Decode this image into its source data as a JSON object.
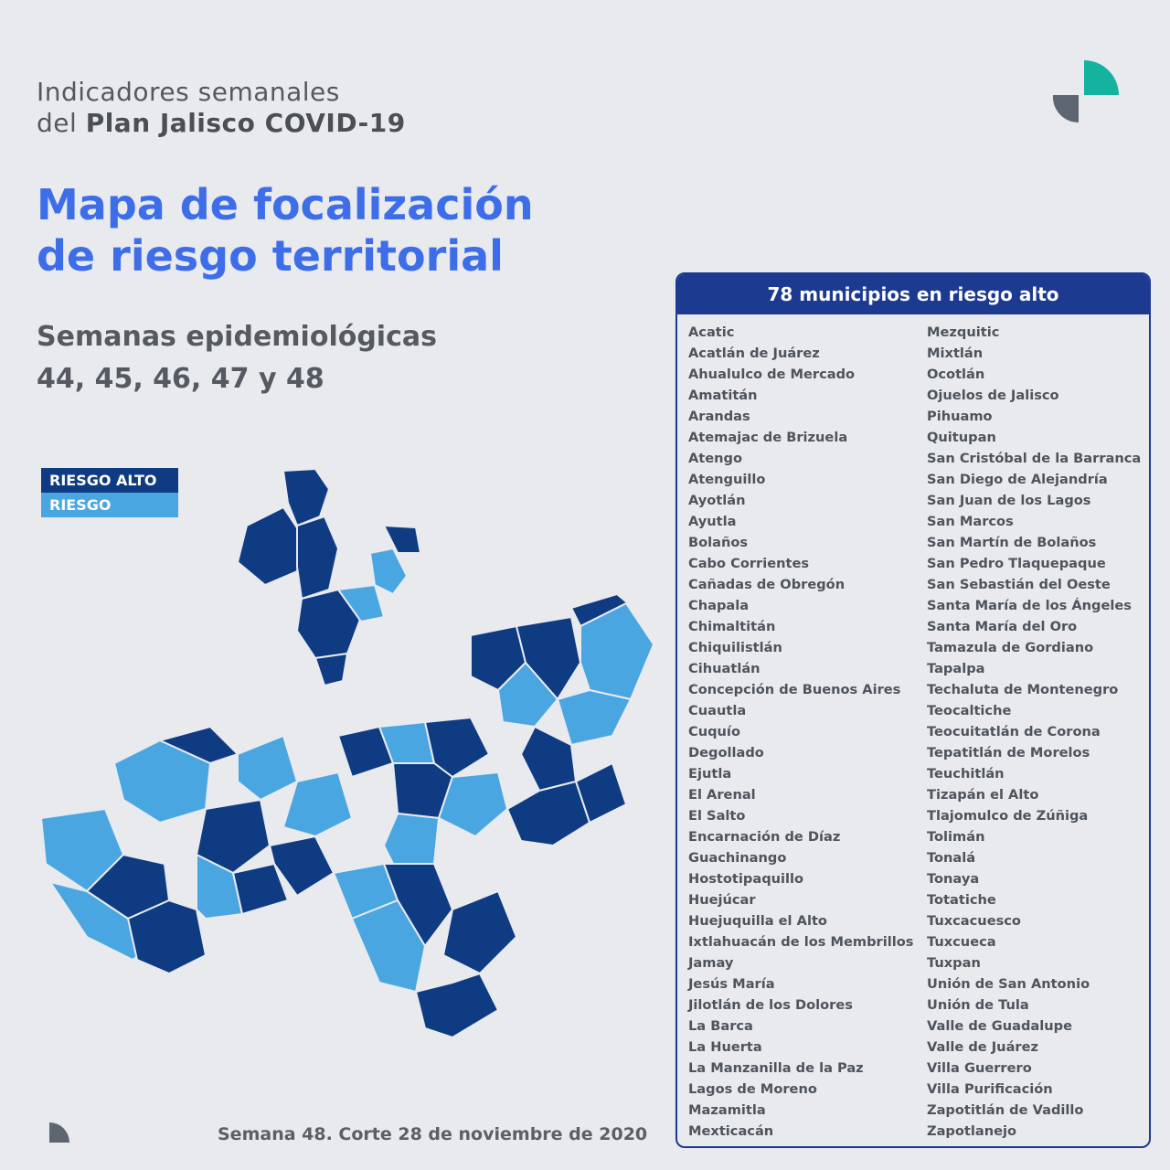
{
  "header": {
    "line1": "Indicadores semanales",
    "line2_prefix": "del ",
    "line2_bold": "Plan Jalisco COVID-19"
  },
  "title": {
    "line1": "Mapa de focalización",
    "line2": "de riesgo territorial"
  },
  "weeks": {
    "line1": "Semanas epidemiológicas",
    "line2": "44, 45, 46, 47 y 48"
  },
  "legend": {
    "high": "RIESGO ALTO",
    "mid": "RIESGO"
  },
  "colors": {
    "high_risk": "#0e3b82",
    "risk": "#4aa6e0",
    "title": "#3d6de8",
    "logo_teal": "#14b3a0",
    "logo_gray": "#5d6670"
  },
  "panel": {
    "title": "78 municipios en riesgo alto",
    "col1": [
      "Acatic",
      "Acatlán de Juárez",
      "Ahualulco de Mercado",
      "Amatitán",
      "Arandas",
      "Atemajac de Brizuela",
      "Atengo",
      "Atenguillo",
      "Ayotlán",
      "Ayutla",
      "Bolaños",
      "Cabo Corrientes",
      "Cañadas de Obregón",
      "Chapala",
      "Chimaltitán",
      "Chiquilistlán",
      "Cihuatlán",
      "Concepción de Buenos Aires",
      "Cuautla",
      "Cuquío",
      "Degollado",
      "Ejutla",
      "El Arenal",
      "El Salto",
      "Encarnación de Díaz",
      "Guachinango",
      "Hostotipaquillo",
      "Huejúcar",
      "Huejuquilla el Alto",
      "Ixtlahuacán de los Membrillos",
      "Jamay",
      "Jesús María",
      "Jilotlán de los Dolores",
      "La Barca",
      "La Huerta",
      "La Manzanilla de la Paz",
      "Lagos de Moreno",
      "Mazamitla",
      "Mexticacán"
    ],
    "col2": [
      "Mezquitic",
      "Mixtlán",
      "Ocotlán",
      "Ojuelos de Jalisco",
      "Pihuamo",
      "Quitupan",
      "San Cristóbal de la Barranca",
      "San Diego de Alejandría",
      "San Juan de los Lagos",
      "San Marcos",
      "San Martín de Bolaños",
      "San Pedro Tlaquepaque",
      "San Sebastián del Oeste",
      "Santa María de los Ángeles",
      "Santa María del Oro",
      "Tamazula de Gordiano",
      "Tapalpa",
      "Techaluta de Montenegro",
      "Teocaltiche",
      "Teocuitatlán de Corona",
      "Tepatitlán de Morelos",
      "Teuchitlán",
      "Tizapán el Alto",
      "Tlajomulco de Zúñiga",
      "Tolimán",
      "Tonalá",
      "Tonaya",
      "Totatiche",
      "Tuxcacuesco",
      "Tuxcueca",
      "Tuxpan",
      "Unión de San Antonio",
      "Unión de Tula",
      "Valle de Guadalupe",
      "Valle de Juárez",
      "Villa Guerrero",
      "Villa Purificación",
      "Zapotitlán de Vadillo",
      "Zapotlanejo"
    ]
  },
  "footer": "Semana 48. Corte 28 de noviembre de 2020",
  "map": {
    "region": "Jalisco",
    "regions": [
      {
        "level": "high"
      },
      {
        "level": "high"
      },
      {
        "level": "high"
      },
      {
        "level": "risk"
      },
      {
        "level": "high"
      },
      {
        "level": "high"
      },
      {
        "level": "risk"
      },
      {
        "level": "high"
      },
      {
        "level": "high"
      },
      {
        "level": "high"
      },
      {
        "level": "risk"
      },
      {
        "level": "risk"
      },
      {
        "level": "high"
      },
      {
        "level": "risk"
      },
      {
        "level": "high"
      },
      {
        "level": "high"
      },
      {
        "level": "risk"
      },
      {
        "level": "high"
      },
      {
        "level": "risk"
      },
      {
        "level": "high"
      },
      {
        "level": "risk"
      },
      {
        "level": "high"
      },
      {
        "level": "risk"
      },
      {
        "level": "high"
      },
      {
        "level": "risk"
      },
      {
        "level": "high"
      },
      {
        "level": "risk"
      },
      {
        "level": "high"
      },
      {
        "level": "risk"
      },
      {
        "level": "high"
      },
      {
        "level": "high"
      },
      {
        "level": "risk"
      },
      {
        "level": "high"
      },
      {
        "level": "risk"
      },
      {
        "level": "high"
      },
      {
        "level": "risk"
      },
      {
        "level": "high"
      },
      {
        "level": "high"
      },
      {
        "level": "risk"
      },
      {
        "level": "high"
      }
    ]
  }
}
